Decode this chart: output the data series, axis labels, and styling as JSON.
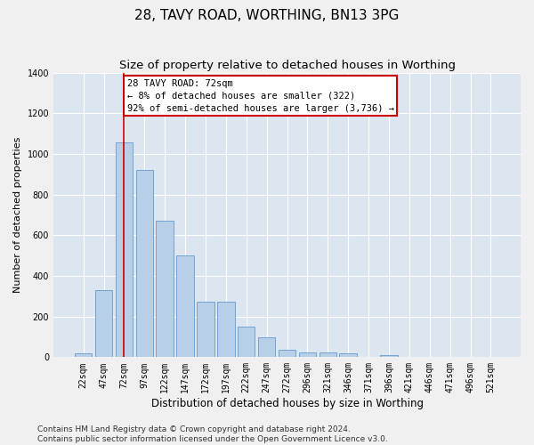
{
  "title": "28, TAVY ROAD, WORTHING, BN13 3PG",
  "subtitle": "Size of property relative to detached houses in Worthing",
  "xlabel": "Distribution of detached houses by size in Worthing",
  "ylabel": "Number of detached properties",
  "categories": [
    "22sqm",
    "47sqm",
    "72sqm",
    "97sqm",
    "122sqm",
    "147sqm",
    "172sqm",
    "197sqm",
    "222sqm",
    "247sqm",
    "272sqm",
    "296sqm",
    "321sqm",
    "346sqm",
    "371sqm",
    "396sqm",
    "421sqm",
    "446sqm",
    "471sqm",
    "496sqm",
    "521sqm"
  ],
  "values": [
    20,
    330,
    1055,
    920,
    670,
    500,
    275,
    275,
    150,
    100,
    35,
    25,
    25,
    18,
    0,
    12,
    0,
    0,
    0,
    0,
    0
  ],
  "bar_color": "#b8cfe8",
  "bar_edge_color": "#6699cc",
  "vline_x": 2,
  "annotation_line1": "28 TAVY ROAD: 72sqm",
  "annotation_line2": "← 8% of detached houses are smaller (322)",
  "annotation_line3": "92% of semi-detached houses are larger (3,736) →",
  "annotation_box_color": "#ffffff",
  "annotation_box_edge_color": "#cc0000",
  "ylim": [
    0,
    1400
  ],
  "yticks": [
    0,
    200,
    400,
    600,
    800,
    1000,
    1200,
    1400
  ],
  "background_color": "#dce6f0",
  "grid_color": "#ffffff",
  "footer_line1": "Contains HM Land Registry data © Crown copyright and database right 2024.",
  "footer_line2": "Contains public sector information licensed under the Open Government Licence v3.0.",
  "title_fontsize": 11,
  "subtitle_fontsize": 9.5,
  "xlabel_fontsize": 8.5,
  "ylabel_fontsize": 8,
  "tick_fontsize": 7,
  "annotation_fontsize": 7.5,
  "footer_fontsize": 6.5
}
